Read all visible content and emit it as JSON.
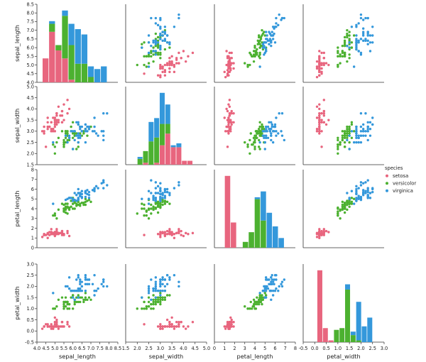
{
  "chart_data": {
    "type": "scatter",
    "layout": "pairplot",
    "variables": [
      "sepal_length",
      "sepal_width",
      "petal_length",
      "petal_width"
    ],
    "axis_ticks": {
      "sepal_length": [
        4.0,
        4.5,
        5.0,
        5.5,
        6.0,
        6.5,
        7.0,
        7.5,
        8.0,
        8.5
      ],
      "sepal_width": [
        1.5,
        2.0,
        2.5,
        3.0,
        3.5,
        4.0,
        4.5,
        5.0
      ],
      "petal_length": [
        0,
        1,
        2,
        3,
        4,
        5,
        6,
        7,
        8
      ],
      "petal_width": [
        -0.5,
        0.0,
        0.5,
        1.0,
        1.5,
        2.0,
        2.5,
        3.0
      ]
    },
    "axis_tick_labels": {
      "sepal_length": [
        "4.0",
        "4.5",
        "5.0",
        "5.5",
        "6.0",
        "6.5",
        "7.0",
        "7.5",
        "8.0",
        "8.5"
      ],
      "sepal_width": [
        "1.5",
        "2.0",
        "2.5",
        "3.0",
        "3.5",
        "4.0",
        "4.5",
        "5.0"
      ],
      "petal_length": [
        "0",
        "1",
        "2",
        "3",
        "4",
        "5",
        "6",
        "7",
        "8"
      ],
      "petal_width": [
        "-0.5",
        "0.0",
        "0.5",
        "1.0",
        "1.5",
        "2.0",
        "2.5",
        "3.0"
      ]
    },
    "xlims": {
      "sepal_length": [
        4.0,
        8.5
      ],
      "sepal_width": [
        1.5,
        5.0
      ],
      "petal_length": [
        0,
        8
      ],
      "petal_width": [
        -0.5,
        3.0
      ]
    },
    "row_ylims": {
      "sepal_length": [
        4.0,
        8.5
      ],
      "sepal_width": [
        1.5,
        5.0
      ],
      "petal_length": [
        0,
        8
      ],
      "petal_width": [
        -0.5,
        3.0
      ]
    },
    "legend": {
      "title": "species",
      "placement": "right-center"
    },
    "grid": false,
    "series": [
      {
        "name": "setosa",
        "color": "#e8657e",
        "points": [
          [
            5.1,
            3.5,
            1.4,
            0.2
          ],
          [
            4.9,
            3.0,
            1.4,
            0.2
          ],
          [
            4.7,
            3.2,
            1.3,
            0.2
          ],
          [
            4.6,
            3.1,
            1.5,
            0.2
          ],
          [
            5.0,
            3.6,
            1.4,
            0.2
          ],
          [
            5.4,
            3.9,
            1.7,
            0.4
          ],
          [
            4.6,
            3.4,
            1.4,
            0.3
          ],
          [
            5.0,
            3.4,
            1.5,
            0.2
          ],
          [
            4.4,
            2.9,
            1.4,
            0.2
          ],
          [
            4.9,
            3.1,
            1.5,
            0.1
          ],
          [
            5.4,
            3.7,
            1.5,
            0.2
          ],
          [
            4.8,
            3.4,
            1.6,
            0.2
          ],
          [
            4.8,
            3.0,
            1.4,
            0.1
          ],
          [
            4.3,
            3.0,
            1.1,
            0.1
          ],
          [
            5.8,
            4.0,
            1.2,
            0.2
          ],
          [
            5.7,
            4.4,
            1.5,
            0.4
          ],
          [
            5.4,
            3.9,
            1.3,
            0.4
          ],
          [
            5.1,
            3.5,
            1.4,
            0.3
          ],
          [
            5.7,
            3.8,
            1.7,
            0.3
          ],
          [
            5.1,
            3.8,
            1.5,
            0.3
          ],
          [
            5.4,
            3.4,
            1.7,
            0.2
          ],
          [
            5.1,
            3.7,
            1.5,
            0.4
          ],
          [
            4.6,
            3.6,
            1.0,
            0.2
          ],
          [
            5.1,
            3.3,
            1.7,
            0.5
          ],
          [
            4.8,
            3.4,
            1.9,
            0.2
          ],
          [
            5.0,
            3.0,
            1.6,
            0.2
          ],
          [
            5.0,
            3.4,
            1.6,
            0.4
          ],
          [
            5.2,
            3.5,
            1.5,
            0.2
          ],
          [
            5.2,
            3.4,
            1.4,
            0.2
          ],
          [
            4.7,
            3.2,
            1.6,
            0.2
          ],
          [
            4.8,
            3.1,
            1.6,
            0.2
          ],
          [
            5.4,
            3.4,
            1.5,
            0.4
          ],
          [
            5.2,
            4.1,
            1.5,
            0.1
          ],
          [
            5.5,
            4.2,
            1.4,
            0.2
          ],
          [
            4.9,
            3.1,
            1.5,
            0.2
          ],
          [
            5.0,
            3.2,
            1.2,
            0.2
          ],
          [
            5.5,
            3.5,
            1.3,
            0.2
          ],
          [
            4.9,
            3.6,
            1.4,
            0.1
          ],
          [
            4.4,
            3.0,
            1.3,
            0.2
          ],
          [
            5.1,
            3.4,
            1.5,
            0.2
          ],
          [
            5.0,
            3.5,
            1.3,
            0.3
          ],
          [
            4.5,
            2.3,
            1.3,
            0.3
          ],
          [
            4.4,
            3.2,
            1.3,
            0.2
          ],
          [
            5.0,
            3.5,
            1.6,
            0.6
          ],
          [
            5.1,
            3.8,
            1.9,
            0.4
          ],
          [
            4.8,
            3.0,
            1.4,
            0.3
          ],
          [
            5.1,
            3.8,
            1.6,
            0.2
          ],
          [
            4.6,
            3.2,
            1.4,
            0.2
          ],
          [
            5.3,
            3.7,
            1.5,
            0.2
          ],
          [
            5.0,
            3.3,
            1.4,
            0.2
          ]
        ]
      },
      {
        "name": "versicolor",
        "color": "#4cb130",
        "points": [
          [
            7.0,
            3.2,
            4.7,
            1.4
          ],
          [
            6.4,
            3.2,
            4.5,
            1.5
          ],
          [
            6.9,
            3.1,
            4.9,
            1.5
          ],
          [
            5.5,
            2.3,
            4.0,
            1.3
          ],
          [
            6.5,
            2.8,
            4.6,
            1.5
          ],
          [
            5.7,
            2.8,
            4.5,
            1.3
          ],
          [
            6.3,
            3.3,
            4.7,
            1.6
          ],
          [
            4.9,
            2.4,
            3.3,
            1.0
          ],
          [
            6.6,
            2.9,
            4.6,
            1.3
          ],
          [
            5.2,
            2.7,
            3.9,
            1.4
          ],
          [
            5.0,
            2.0,
            3.5,
            1.0
          ],
          [
            5.9,
            3.0,
            4.2,
            1.5
          ],
          [
            6.0,
            2.2,
            4.0,
            1.0
          ],
          [
            6.1,
            2.9,
            4.7,
            1.4
          ],
          [
            5.6,
            2.9,
            3.6,
            1.3
          ],
          [
            6.7,
            3.1,
            4.4,
            1.4
          ],
          [
            5.6,
            3.0,
            4.5,
            1.5
          ],
          [
            5.8,
            2.7,
            4.1,
            1.0
          ],
          [
            6.2,
            2.2,
            4.5,
            1.5
          ],
          [
            5.6,
            2.5,
            3.9,
            1.1
          ],
          [
            5.9,
            3.2,
            4.8,
            1.8
          ],
          [
            6.1,
            2.8,
            4.0,
            1.3
          ],
          [
            6.3,
            2.5,
            4.9,
            1.5
          ],
          [
            6.1,
            2.8,
            4.7,
            1.2
          ],
          [
            6.4,
            2.9,
            4.3,
            1.3
          ],
          [
            6.6,
            3.0,
            4.4,
            1.4
          ],
          [
            6.8,
            2.8,
            4.8,
            1.4
          ],
          [
            6.7,
            3.0,
            5.0,
            1.7
          ],
          [
            6.0,
            2.9,
            4.5,
            1.5
          ],
          [
            5.7,
            2.6,
            3.5,
            1.0
          ],
          [
            5.5,
            2.4,
            3.8,
            1.1
          ],
          [
            5.5,
            2.4,
            3.7,
            1.0
          ],
          [
            5.8,
            2.7,
            3.9,
            1.2
          ],
          [
            6.0,
            2.7,
            5.1,
            1.6
          ],
          [
            5.4,
            3.0,
            4.5,
            1.5
          ],
          [
            6.0,
            3.4,
            4.5,
            1.6
          ],
          [
            6.7,
            3.1,
            4.7,
            1.5
          ],
          [
            6.3,
            2.3,
            4.4,
            1.3
          ],
          [
            5.6,
            3.0,
            4.1,
            1.3
          ],
          [
            5.5,
            2.5,
            4.0,
            1.3
          ],
          [
            5.5,
            2.6,
            4.4,
            1.2
          ],
          [
            6.1,
            3.0,
            4.6,
            1.4
          ],
          [
            5.8,
            2.6,
            4.0,
            1.2
          ],
          [
            5.0,
            2.3,
            3.3,
            1.0
          ],
          [
            5.6,
            2.7,
            4.2,
            1.3
          ],
          [
            5.7,
            3.0,
            4.2,
            1.2
          ],
          [
            5.7,
            2.9,
            4.2,
            1.3
          ],
          [
            6.2,
            2.9,
            4.3,
            1.3
          ],
          [
            5.1,
            2.5,
            3.0,
            1.1
          ],
          [
            5.7,
            2.8,
            4.1,
            1.3
          ]
        ]
      },
      {
        "name": "virginica",
        "color": "#3498db",
        "points": [
          [
            6.3,
            3.3,
            6.0,
            2.5
          ],
          [
            5.8,
            2.7,
            5.1,
            1.9
          ],
          [
            7.1,
            3.0,
            5.9,
            2.1
          ],
          [
            6.3,
            2.9,
            5.6,
            1.8
          ],
          [
            6.5,
            3.0,
            5.8,
            2.2
          ],
          [
            7.6,
            3.0,
            6.6,
            2.1
          ],
          [
            4.9,
            2.5,
            4.5,
            1.7
          ],
          [
            7.3,
            2.9,
            6.3,
            1.8
          ],
          [
            6.7,
            2.5,
            5.8,
            1.8
          ],
          [
            7.2,
            3.6,
            6.1,
            2.5
          ],
          [
            6.5,
            3.2,
            5.1,
            2.0
          ],
          [
            6.4,
            2.7,
            5.3,
            1.9
          ],
          [
            6.8,
            3.0,
            5.5,
            2.1
          ],
          [
            5.7,
            2.5,
            5.0,
            2.0
          ],
          [
            5.8,
            2.8,
            5.1,
            2.4
          ],
          [
            6.4,
            3.2,
            5.3,
            2.3
          ],
          [
            6.5,
            3.0,
            5.5,
            1.8
          ],
          [
            7.7,
            3.8,
            6.7,
            2.2
          ],
          [
            7.7,
            2.6,
            6.9,
            2.3
          ],
          [
            6.0,
            2.2,
            5.0,
            1.5
          ],
          [
            6.9,
            3.2,
            5.7,
            2.3
          ],
          [
            5.6,
            2.8,
            4.9,
            2.0
          ],
          [
            7.7,
            2.8,
            6.7,
            2.0
          ],
          [
            6.3,
            2.7,
            4.9,
            1.8
          ],
          [
            6.7,
            3.3,
            5.7,
            2.1
          ],
          [
            7.2,
            3.2,
            6.0,
            1.8
          ],
          [
            6.2,
            2.8,
            4.8,
            1.8
          ],
          [
            6.1,
            3.0,
            4.9,
            1.8
          ],
          [
            6.4,
            2.8,
            5.6,
            2.1
          ],
          [
            7.2,
            3.0,
            5.8,
            1.6
          ],
          [
            7.4,
            2.8,
            6.1,
            1.9
          ],
          [
            7.9,
            3.8,
            6.4,
            2.0
          ],
          [
            6.4,
            2.8,
            5.6,
            2.2
          ],
          [
            6.3,
            2.8,
            5.1,
            1.5
          ],
          [
            6.1,
            2.6,
            5.6,
            1.4
          ],
          [
            7.7,
            3.0,
            6.1,
            2.3
          ],
          [
            6.3,
            3.4,
            5.6,
            2.4
          ],
          [
            6.4,
            3.1,
            5.5,
            1.8
          ],
          [
            6.0,
            3.0,
            4.8,
            1.8
          ],
          [
            6.9,
            3.1,
            5.4,
            2.1
          ],
          [
            6.7,
            3.1,
            5.6,
            2.4
          ],
          [
            6.9,
            3.1,
            5.1,
            2.3
          ],
          [
            5.8,
            2.7,
            5.1,
            1.9
          ],
          [
            6.8,
            3.2,
            5.9,
            2.3
          ],
          [
            6.7,
            3.3,
            5.7,
            2.5
          ],
          [
            6.7,
            3.0,
            5.2,
            2.3
          ],
          [
            6.3,
            2.5,
            5.0,
            1.9
          ],
          [
            6.5,
            3.0,
            5.2,
            2.0
          ],
          [
            6.2,
            3.4,
            5.4,
            2.3
          ],
          [
            5.9,
            3.0,
            5.1,
            1.8
          ]
        ]
      }
    ],
    "diagonal": {
      "type": "stacked_histogram",
      "bins": 10
    }
  }
}
